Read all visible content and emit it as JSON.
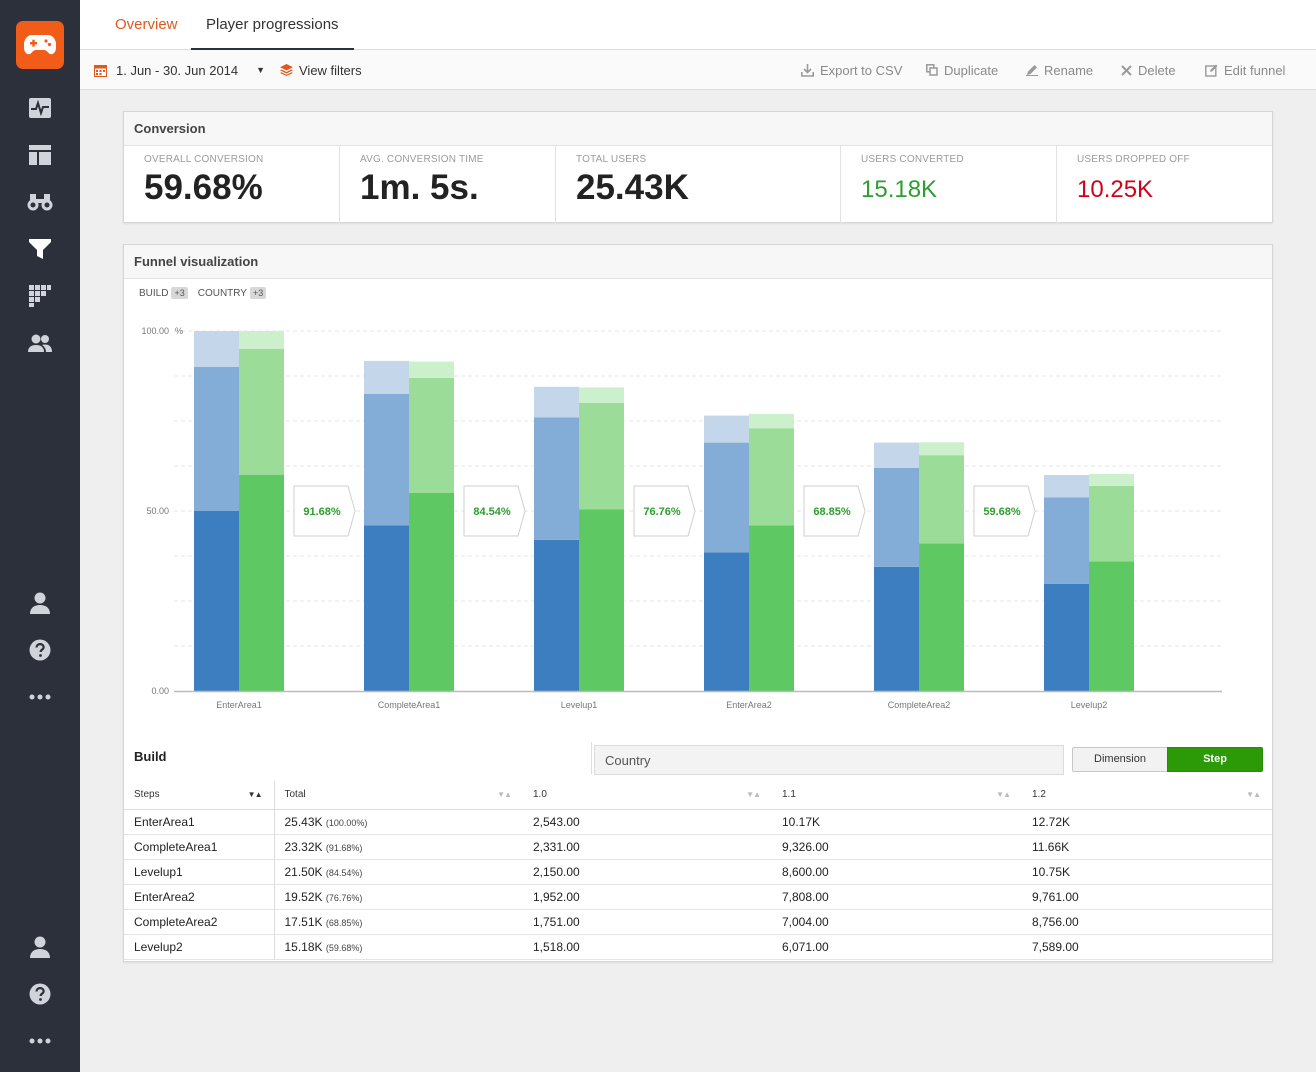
{
  "tabs": {
    "overview": "Overview",
    "progressions": "Player progressions"
  },
  "toolbar": {
    "date_range": "1. Jun - 30. Jun 2014",
    "view_filters": "View filters",
    "export": "Export to CSV",
    "duplicate": "Duplicate",
    "rename": "Rename",
    "delete": "Delete",
    "edit": "Edit funnel"
  },
  "conversion": {
    "title": "Conversion",
    "stats": [
      {
        "label": "OVERALL CONVERSION",
        "value": "59.68%"
      },
      {
        "label": "AVG. CONVERSION TIME",
        "value": "1m. 5s."
      },
      {
        "label": "TOTAL USERS",
        "value": "25.43K"
      },
      {
        "label": "USERS CONVERTED",
        "value": "15.18K"
      },
      {
        "label": "USERS DROPPED OFF",
        "value": "10.25K"
      }
    ]
  },
  "funnel": {
    "title": "Funnel visualization",
    "filters": [
      {
        "label": "BUILD",
        "badge": "+3"
      },
      {
        "label": "COUNTRY",
        "badge": "+3"
      }
    ]
  },
  "chart_data": {
    "type": "bar",
    "categories": [
      "EnterArea1",
      "CompleteArea1",
      "Levelup1",
      "EnterArea2",
      "CompleteArea2",
      "Levelup2"
    ],
    "ylim": [
      0,
      100
    ],
    "yticks": [
      "0.00",
      "50.00",
      "100.00"
    ],
    "y_unit": "%",
    "blue_stack": [
      [
        50,
        40,
        10
      ],
      [
        46,
        36.5,
        9.2
      ],
      [
        42,
        34,
        8.5
      ],
      [
        38.5,
        30.5,
        7.5
      ],
      [
        34.5,
        27.5,
        7
      ],
      [
        29.8,
        24,
        6.2
      ]
    ],
    "green_stack": [
      [
        60,
        35,
        5
      ],
      [
        55,
        32,
        4.5
      ],
      [
        50.5,
        29.5,
        4.3
      ],
      [
        46,
        27,
        4
      ],
      [
        41,
        24.5,
        3.6
      ],
      [
        36,
        21,
        3.3
      ]
    ],
    "step_conversion": [
      "91.68%",
      "84.54%",
      "76.76%",
      "68.85%",
      "59.68%"
    ],
    "colors": {
      "blue": [
        "#3c7ebf",
        "#83acd6",
        "#c3d6ea"
      ],
      "green": [
        "#5ec862",
        "#9bdd98",
        "#ccf0cb"
      ]
    }
  },
  "breakdown": {
    "tab_build": "Build",
    "tab_country": "Country",
    "toggle_dimension": "Dimension",
    "toggle_step": "Step",
    "columns": [
      "Steps",
      "Total",
      "1.0",
      "1.1",
      "1.2"
    ],
    "rows": [
      {
        "step": "EnterArea1",
        "total": "25.43K",
        "pct": "(100.00%)",
        "v10": "2,543.00",
        "v11": "10.17K",
        "v12": "12.72K"
      },
      {
        "step": "CompleteArea1",
        "total": "23.32K",
        "pct": "(91.68%)",
        "v10": "2,331.00",
        "v11": "9,326.00",
        "v12": "11.66K"
      },
      {
        "step": "Levelup1",
        "total": "21.50K",
        "pct": "(84.54%)",
        "v10": "2,150.00",
        "v11": "8,600.00",
        "v12": "10.75K"
      },
      {
        "step": "EnterArea2",
        "total": "19.52K",
        "pct": "(76.76%)",
        "v10": "1,952.00",
        "v11": "7,808.00",
        "v12": "9,761.00"
      },
      {
        "step": "CompleteArea2",
        "total": "17.51K",
        "pct": "(68.85%)",
        "v10": "1,751.00",
        "v11": "7,004.00",
        "v12": "8,756.00"
      },
      {
        "step": "Levelup2",
        "total": "15.18K",
        "pct": "(59.68%)",
        "v10": "1,518.00",
        "v11": "6,071.00",
        "v12": "7,589.00"
      }
    ]
  },
  "sidebar": {
    "icons": [
      "gamepad-icon",
      "pulse-icon",
      "dashboard-icon",
      "binoculars-icon",
      "funnel-icon",
      "heatmap-icon",
      "users-icon",
      "user-icon",
      "help-icon",
      "more-icon",
      "user-icon",
      "help-icon",
      "more-icon"
    ]
  }
}
